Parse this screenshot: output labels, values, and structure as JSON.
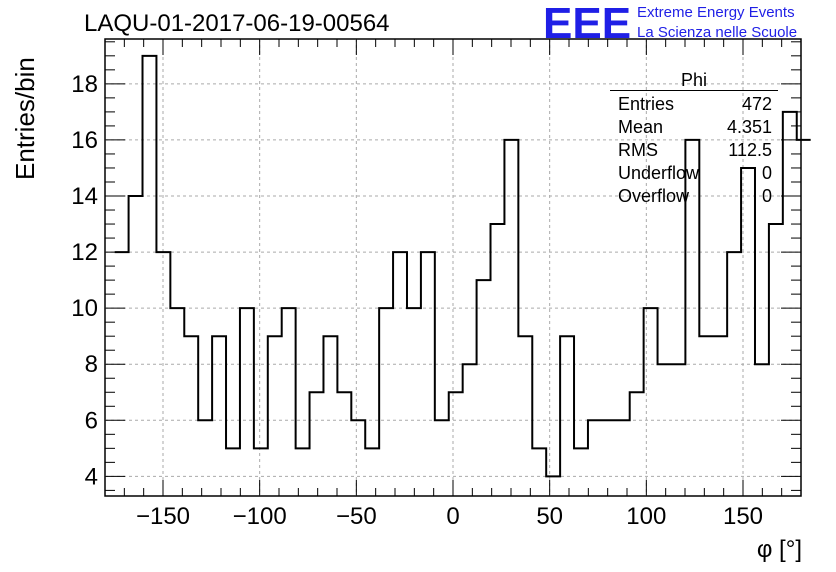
{
  "title": "LAQU-01-2017-06-19-00564",
  "logo": {
    "mark": "EEE",
    "line1": "Extreme Energy Events",
    "line2": "La Scienza nelle Scuole",
    "color": "#1f1fe6"
  },
  "stats": {
    "name": "Phi",
    "rows": [
      {
        "label": "Entries",
        "value": "472"
      },
      {
        "label": "Mean",
        "value": "4.351"
      },
      {
        "label": "RMS",
        "value": "112.5"
      },
      {
        "label": "Underflow",
        "value": "0"
      },
      {
        "label": "Overflow",
        "value": "0"
      }
    ]
  },
  "chart_data": {
    "type": "step-histogram",
    "xlabel": "φ [°]",
    "ylabel": "Entries/bin",
    "xlim": [
      -180,
      180
    ],
    "ylim": [
      3.3,
      19.6
    ],
    "bin_start": -175,
    "bin_width": 7.2,
    "values": [
      12,
      14,
      19,
      12,
      10,
      9,
      6,
      9,
      5,
      10,
      5,
      9,
      10,
      5,
      7,
      9,
      7,
      6,
      5,
      10,
      12,
      10,
      12,
      6,
      7,
      8,
      11,
      13,
      16,
      9,
      5,
      4,
      9,
      5,
      6,
      6,
      6,
      7,
      10,
      8,
      8,
      16,
      9,
      9,
      12,
      15,
      8,
      13,
      17,
      16
    ],
    "xticks": [
      -150,
      -100,
      -50,
      0,
      50,
      100,
      150
    ],
    "xtick_labels": [
      "−150",
      "−100",
      "−50",
      "0",
      "50",
      "100",
      "150"
    ],
    "yticks": [
      4,
      6,
      8,
      10,
      12,
      14,
      16,
      18
    ],
    "grid": true,
    "line_color": "#000000"
  }
}
